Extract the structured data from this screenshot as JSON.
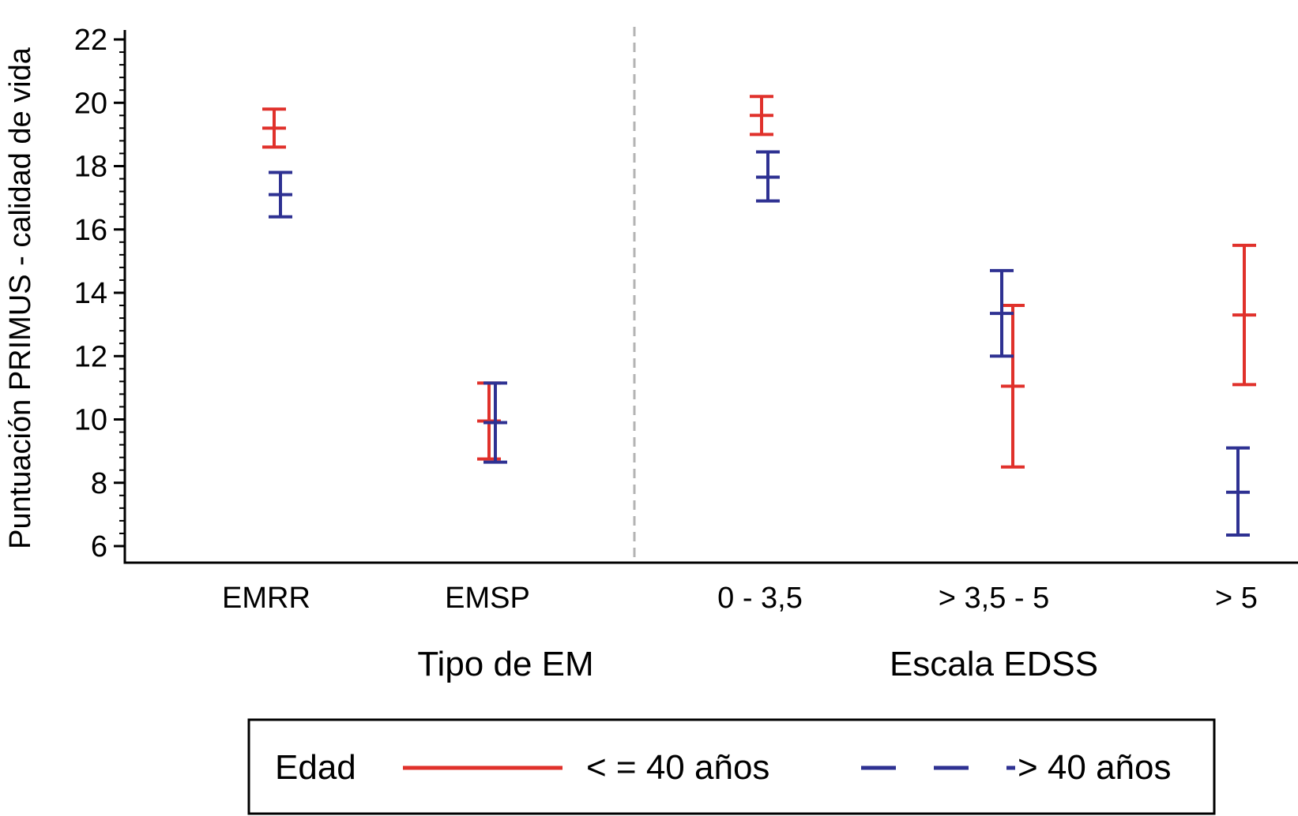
{
  "chart_data": {
    "type": "errorbar",
    "ylabel": "Puntuación PRIMUS - calidad de vida",
    "ylim": [
      6,
      22
    ],
    "yticks": [
      6,
      8,
      10,
      12,
      14,
      16,
      18,
      20,
      22
    ],
    "groups": [
      {
        "label": "Tipo de EM",
        "categories": [
          "EMRR",
          "EMSP"
        ]
      },
      {
        "label": "Escala EDSS",
        "categories": [
          "0 - 3,5",
          "> 3,5 - 5",
          "> 5"
        ]
      }
    ],
    "categories": [
      "EMRR",
      "EMSP",
      "0 - 3,5",
      "> 3,5 - 5",
      "> 5"
    ],
    "legend": {
      "title": "Edad",
      "position": "bottom"
    },
    "series": [
      {
        "name": "< = 40 años",
        "color": "#e0312b",
        "line_style": "solid",
        "mean": [
          19.2,
          9.95,
          19.6,
          11.05,
          13.3
        ],
        "lower": [
          18.6,
          8.75,
          19.0,
          8.5,
          11.1
        ],
        "upper": [
          19.8,
          11.15,
          20.2,
          13.6,
          15.5
        ]
      },
      {
        "name": "> 40 años",
        "color": "#2e3192",
        "line_style": "dashed",
        "mean": [
          17.1,
          9.9,
          17.65,
          13.35,
          7.7
        ],
        "lower": [
          16.4,
          8.65,
          16.9,
          12.0,
          6.35
        ],
        "upper": [
          17.8,
          11.15,
          18.45,
          14.7,
          9.1
        ]
      }
    ]
  }
}
